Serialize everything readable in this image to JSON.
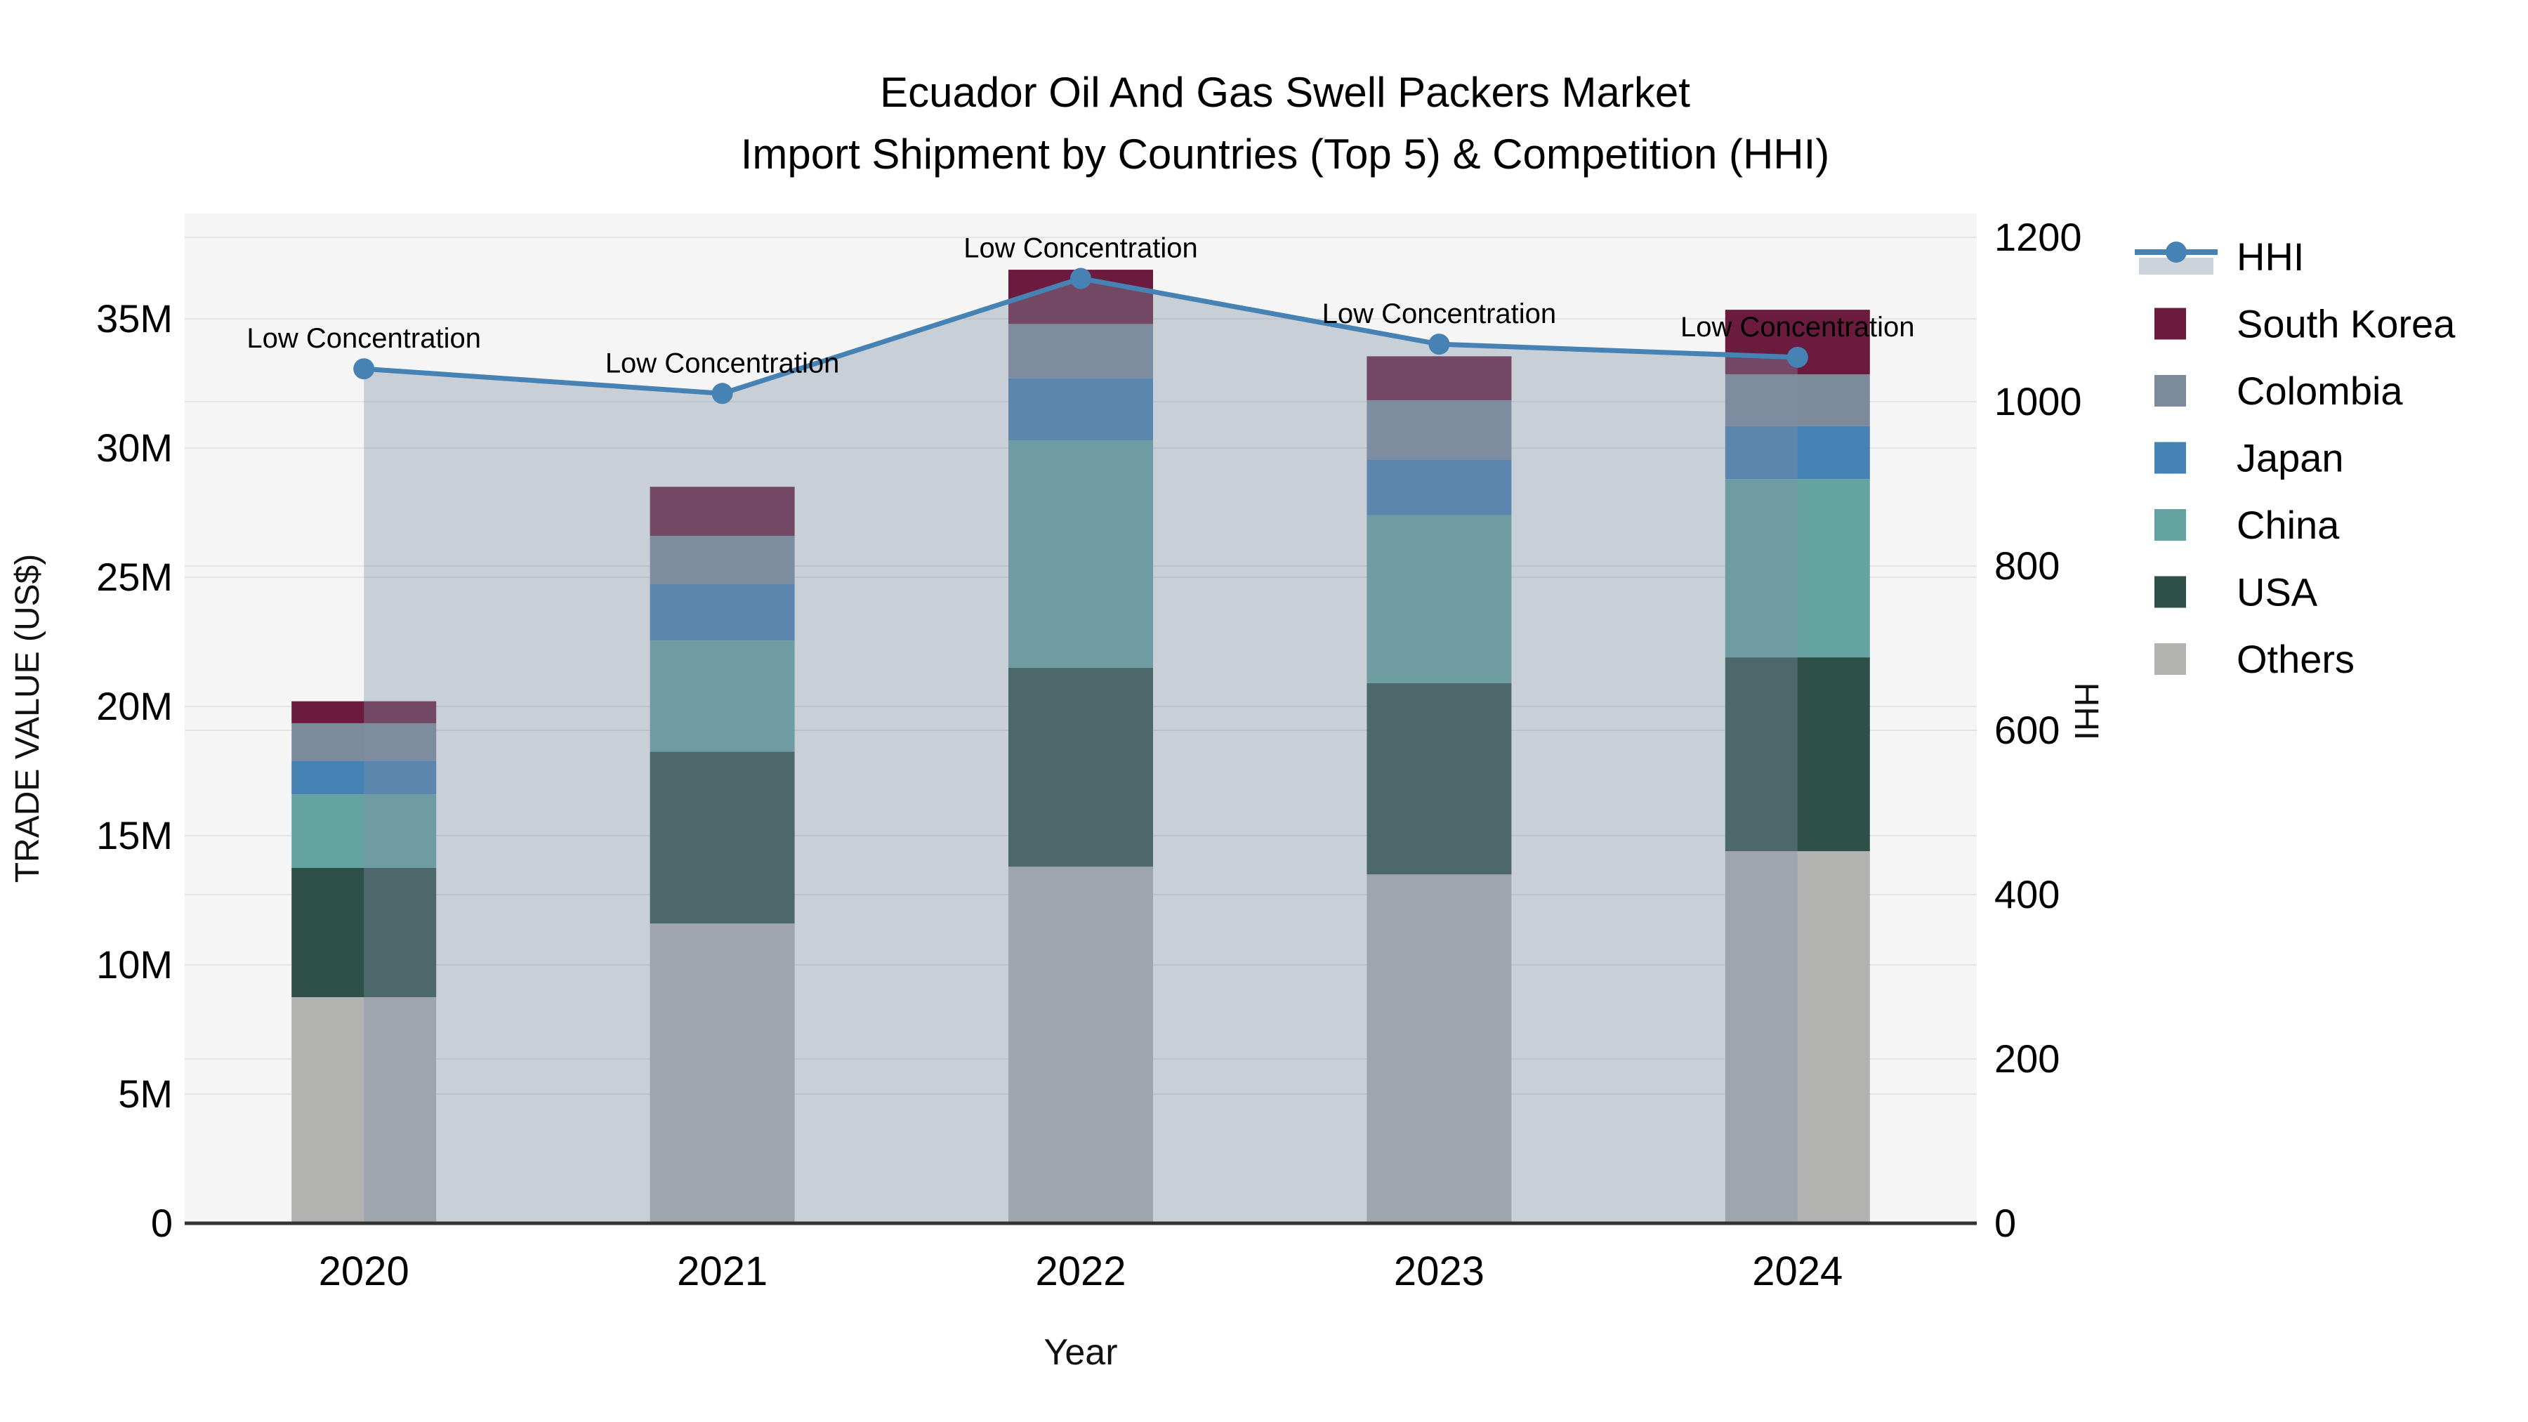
{
  "title": {
    "line1": "Ecuador Oil And Gas Swell Packers Market",
    "line2": "Import Shipment by Countries (Top 5) & Competition (HHI)"
  },
  "axes": {
    "left": {
      "title": "TRADE VALUE (US$)",
      "tick_labels": [
        "0",
        "5M",
        "10M",
        "15M",
        "20M",
        "25M",
        "30M",
        "35M"
      ],
      "tick_values_musd": [
        0,
        5,
        10,
        15,
        20,
        25,
        30,
        35
      ]
    },
    "right": {
      "title": "HHI",
      "tick_labels": [
        "0",
        "200",
        "400",
        "600",
        "800",
        "1000",
        "1200"
      ],
      "tick_values": [
        0,
        200,
        400,
        600,
        800,
        1000,
        1200
      ]
    },
    "x": {
      "title": "Year",
      "categories": [
        "2020",
        "2021",
        "2022",
        "2023",
        "2024"
      ]
    }
  },
  "legend": {
    "items": [
      {
        "label": "HHI",
        "type": "line",
        "color": "#4682b4"
      },
      {
        "label": "South Korea",
        "type": "swatch",
        "color": "#6b1c3e"
      },
      {
        "label": "Colombia",
        "type": "swatch",
        "color": "#7c8b9c"
      },
      {
        "label": "Japan",
        "type": "swatch",
        "color": "#4682b4"
      },
      {
        "label": "China",
        "type": "swatch",
        "color": "#64a3a1"
      },
      {
        "label": "USA",
        "type": "swatch",
        "color": "#2f5048"
      },
      {
        "label": "Others",
        "type": "swatch",
        "color": "#b2b2b0"
      }
    ]
  },
  "chart_data": {
    "type": "bar",
    "subtype": "stacked-bar-with-line",
    "title": "Ecuador Oil And Gas Swell Packers Market Import Shipment by Countries (Top 5) & Competition (HHI)",
    "xlabel": "Year",
    "ylabel_left": "TRADE VALUE (US$)",
    "ylabel_right": "HHI",
    "categories": [
      "2020",
      "2021",
      "2022",
      "2023",
      "2024"
    ],
    "units": "million US$",
    "ylim_left_musd": [
      0,
      35
    ],
    "ylim_right_hhi": [
      0,
      1200
    ],
    "grid": true,
    "legend_position": "right",
    "series": [
      {
        "name": "Others",
        "color": "#b2b2b0",
        "values": [
          8.75,
          11.6,
          13.8,
          13.5,
          14.4
        ]
      },
      {
        "name": "USA",
        "color": "#2f5048",
        "values": [
          5.0,
          6.65,
          7.7,
          7.4,
          7.5
        ]
      },
      {
        "name": "China",
        "color": "#64a3a1",
        "values": [
          2.85,
          4.3,
          8.8,
          6.5,
          6.9
        ]
      },
      {
        "name": "Japan",
        "color": "#4682b4",
        "values": [
          1.3,
          2.2,
          2.4,
          2.15,
          2.05
        ]
      },
      {
        "name": "Colombia",
        "color": "#7c8b9c",
        "values": [
          1.45,
          1.85,
          2.1,
          2.3,
          2.0
        ]
      },
      {
        "name": "South Korea",
        "color": "#6b1c3e",
        "values": [
          0.85,
          1.9,
          2.1,
          1.7,
          2.5
        ]
      }
    ],
    "bar_totals_musd": [
      20.2,
      28.5,
      36.9,
      33.55,
      35.35
    ],
    "line_series": {
      "name": "HHI",
      "axis": "right",
      "color": "#4682b4",
      "area_fill": "rgba(125,145,165,0.38)",
      "values": [
        1040,
        1010,
        1150,
        1070,
        1054
      ],
      "annotations": [
        "Low Concentration",
        "Low Concentration",
        "Low Concentration",
        "Low Concentration",
        "Low Concentration"
      ]
    }
  },
  "style": {
    "plot_background": "#f5f5f5",
    "page_background": "#ffffff",
    "gridline_color": "#e4e4e4",
    "axis_line_color": "#333333",
    "text_color": "#000000"
  }
}
